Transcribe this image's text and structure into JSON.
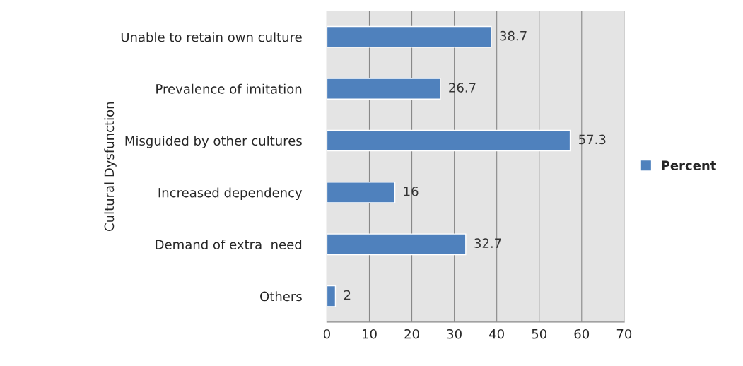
{
  "chart_data": {
    "type": "bar",
    "orientation": "horizontal",
    "ylabel": "Cultural Dysfunction",
    "categories": [
      "Unable to retain own culture",
      "Prevalence of imitation",
      "Misguided by other cultures",
      "Increased dependency",
      "Demand of extra  need",
      "Others"
    ],
    "series": [
      {
        "name": "Percent",
        "color": "#4f81bd",
        "values": [
          38.7,
          26.7,
          57.3,
          16,
          32.7,
          2
        ]
      }
    ],
    "xlim": [
      0,
      70
    ],
    "xticks": [
      0,
      10,
      20,
      30,
      40,
      50,
      60,
      70
    ],
    "grid": "x",
    "legend": "right",
    "data_labels": true
  }
}
